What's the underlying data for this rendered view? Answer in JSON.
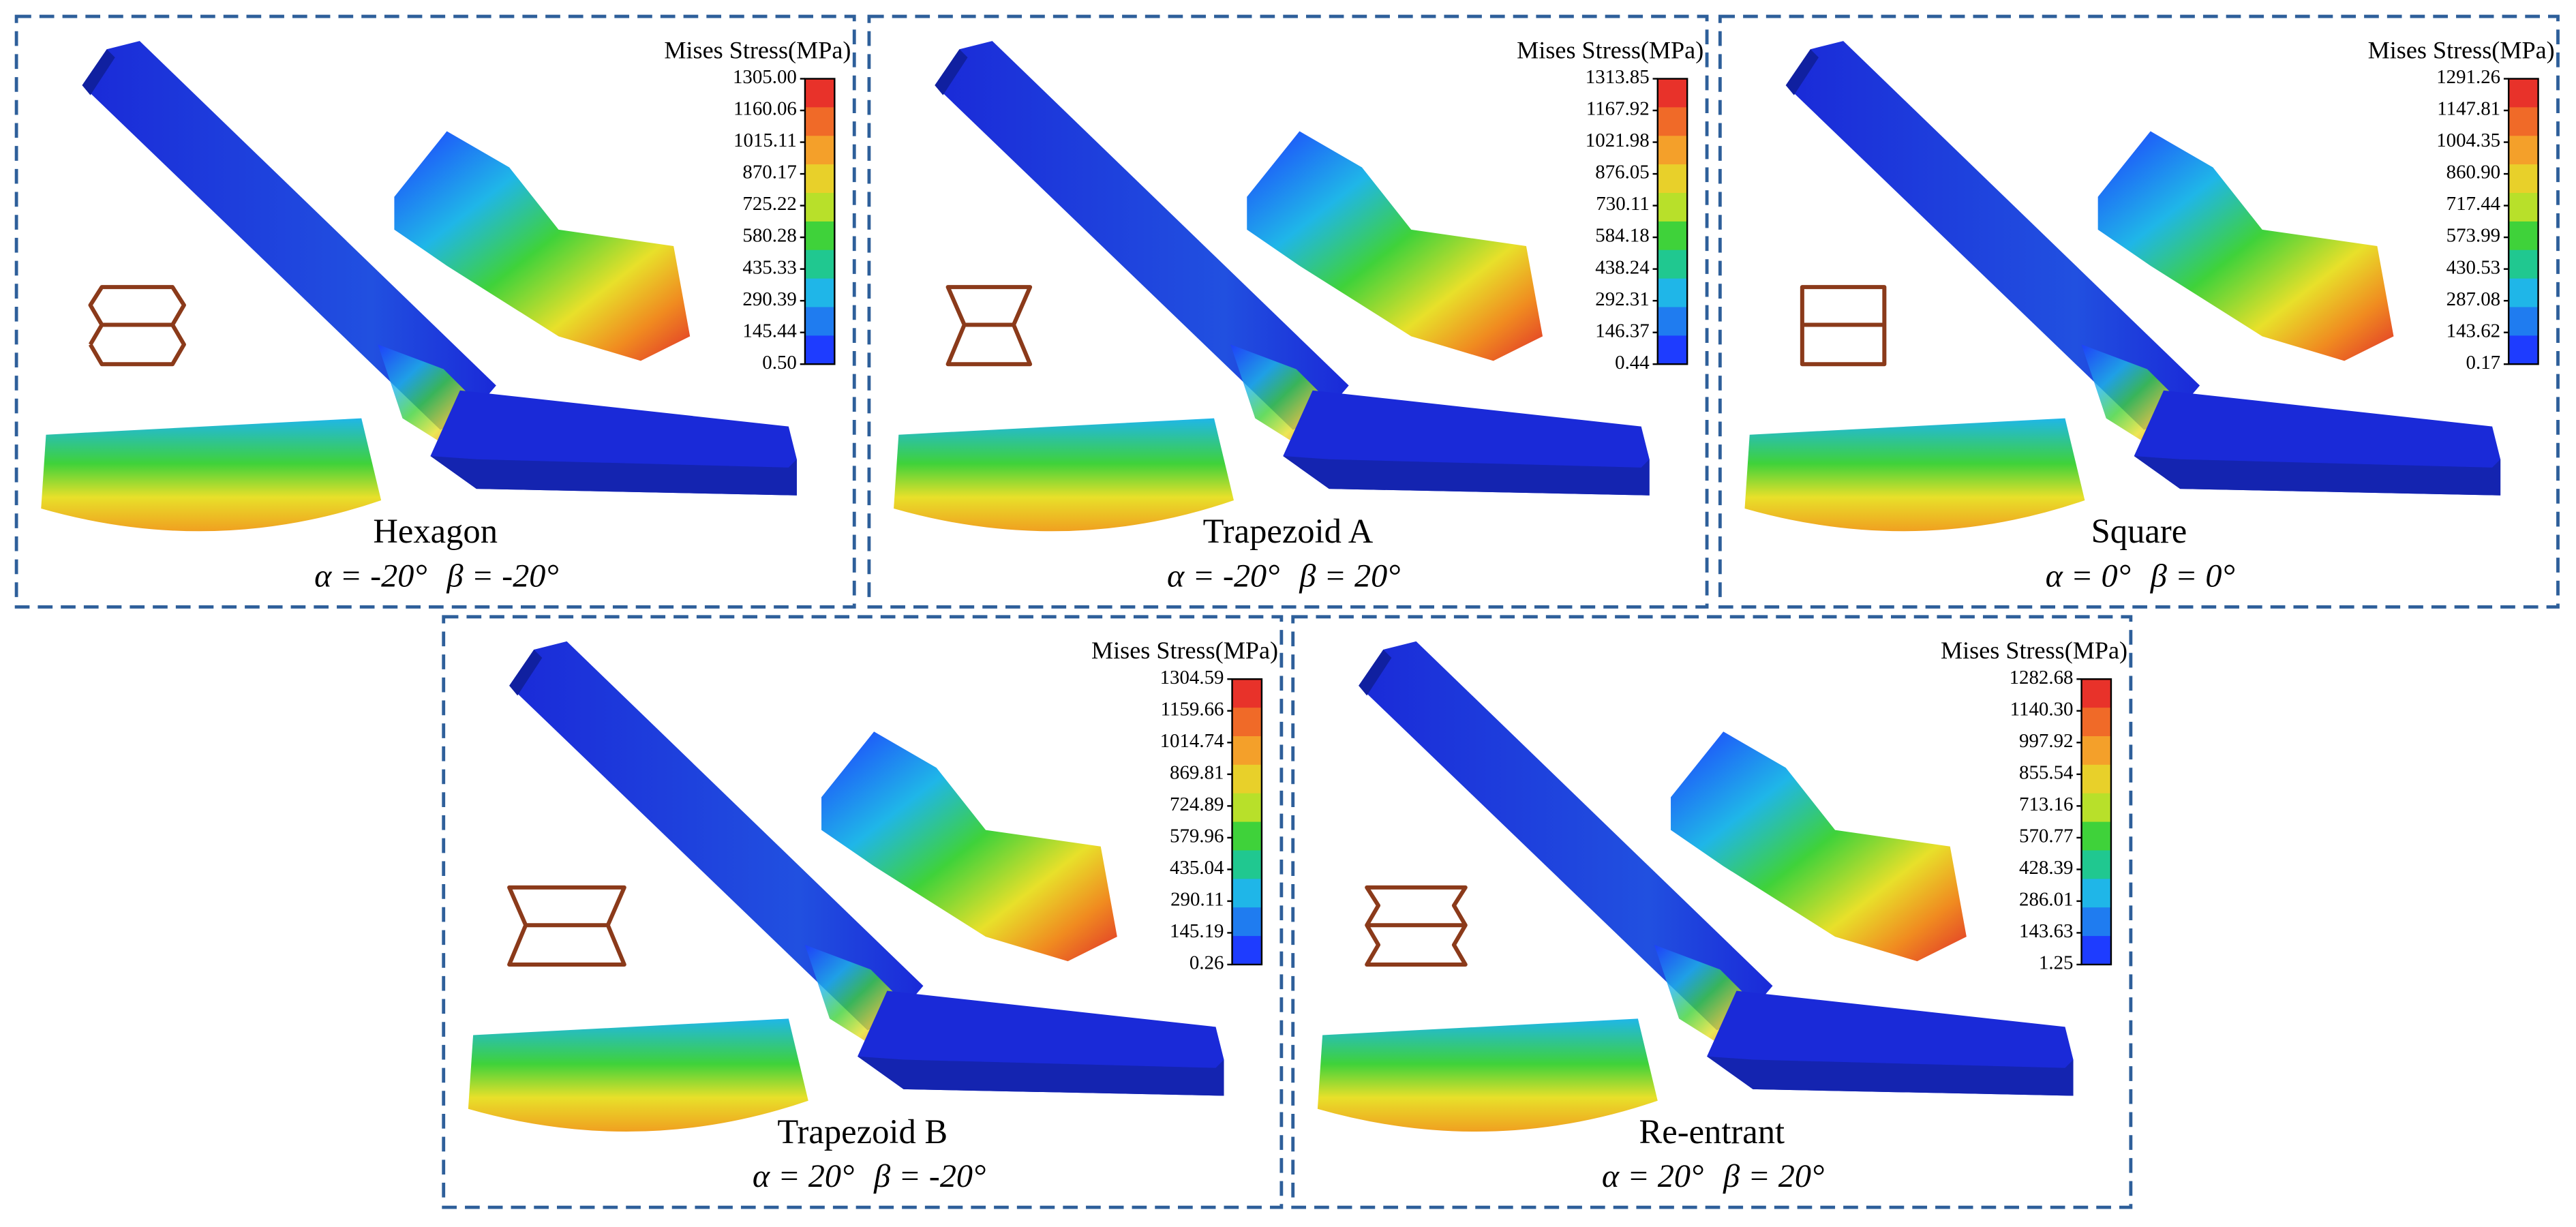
{
  "panels": [
    {
      "title": "Hexagon",
      "alpha": "α = -20°",
      "beta": "β = -20°",
      "legend_title": "Mises Stress(MPa)",
      "ticks": [
        {
          "value": 1305,
          "label": "1305.00"
        },
        1160.06,
        1015.11,
        870.17,
        725.22,
        580.28,
        435.33,
        290.39,
        145.44,
        {
          "value": 0.5,
          "label": "0.50"
        }
      ]
    },
    {
      "title": "Trapezoid A",
      "alpha": "α = -20°",
      "beta": "β = 20°",
      "legend_title": "Mises Stress(MPa)",
      "ticks": [
        1313.85,
        1167.92,
        1021.98,
        876.05,
        730.11,
        584.18,
        438.24,
        292.31,
        146.37,
        0.44
      ]
    },
    {
      "title": "Square",
      "alpha": "α = 0°",
      "beta": "β = 0°",
      "legend_title": "Mises Stress(MPa)",
      "ticks": [
        1291.26,
        1147.81,
        1004.35,
        {
          "value": 860.9,
          "label": "860.90"
        },
        717.44,
        573.99,
        430.53,
        287.08,
        143.62,
        0.17
      ]
    },
    {
      "title": "Trapezoid B",
      "alpha": "α = 20°",
      "beta": "β = -20°",
      "legend_title": "Mises Stress(MPa)",
      "ticks": [
        1304.59,
        1159.66,
        1014.74,
        869.81,
        724.89,
        579.96,
        435.04,
        290.11,
        145.19,
        0.26
      ]
    },
    {
      "title": "Re-entrant",
      "alpha": "α = 20°",
      "beta": "β = 20°",
      "legend_title": "Mises Stress(MPa)",
      "ticks": [
        1282.68,
        {
          "value": 1140.3,
          "label": "1140.30"
        },
        997.92,
        855.54,
        713.16,
        570.77,
        428.39,
        286.01,
        143.63,
        1.25
      ]
    }
  ]
}
